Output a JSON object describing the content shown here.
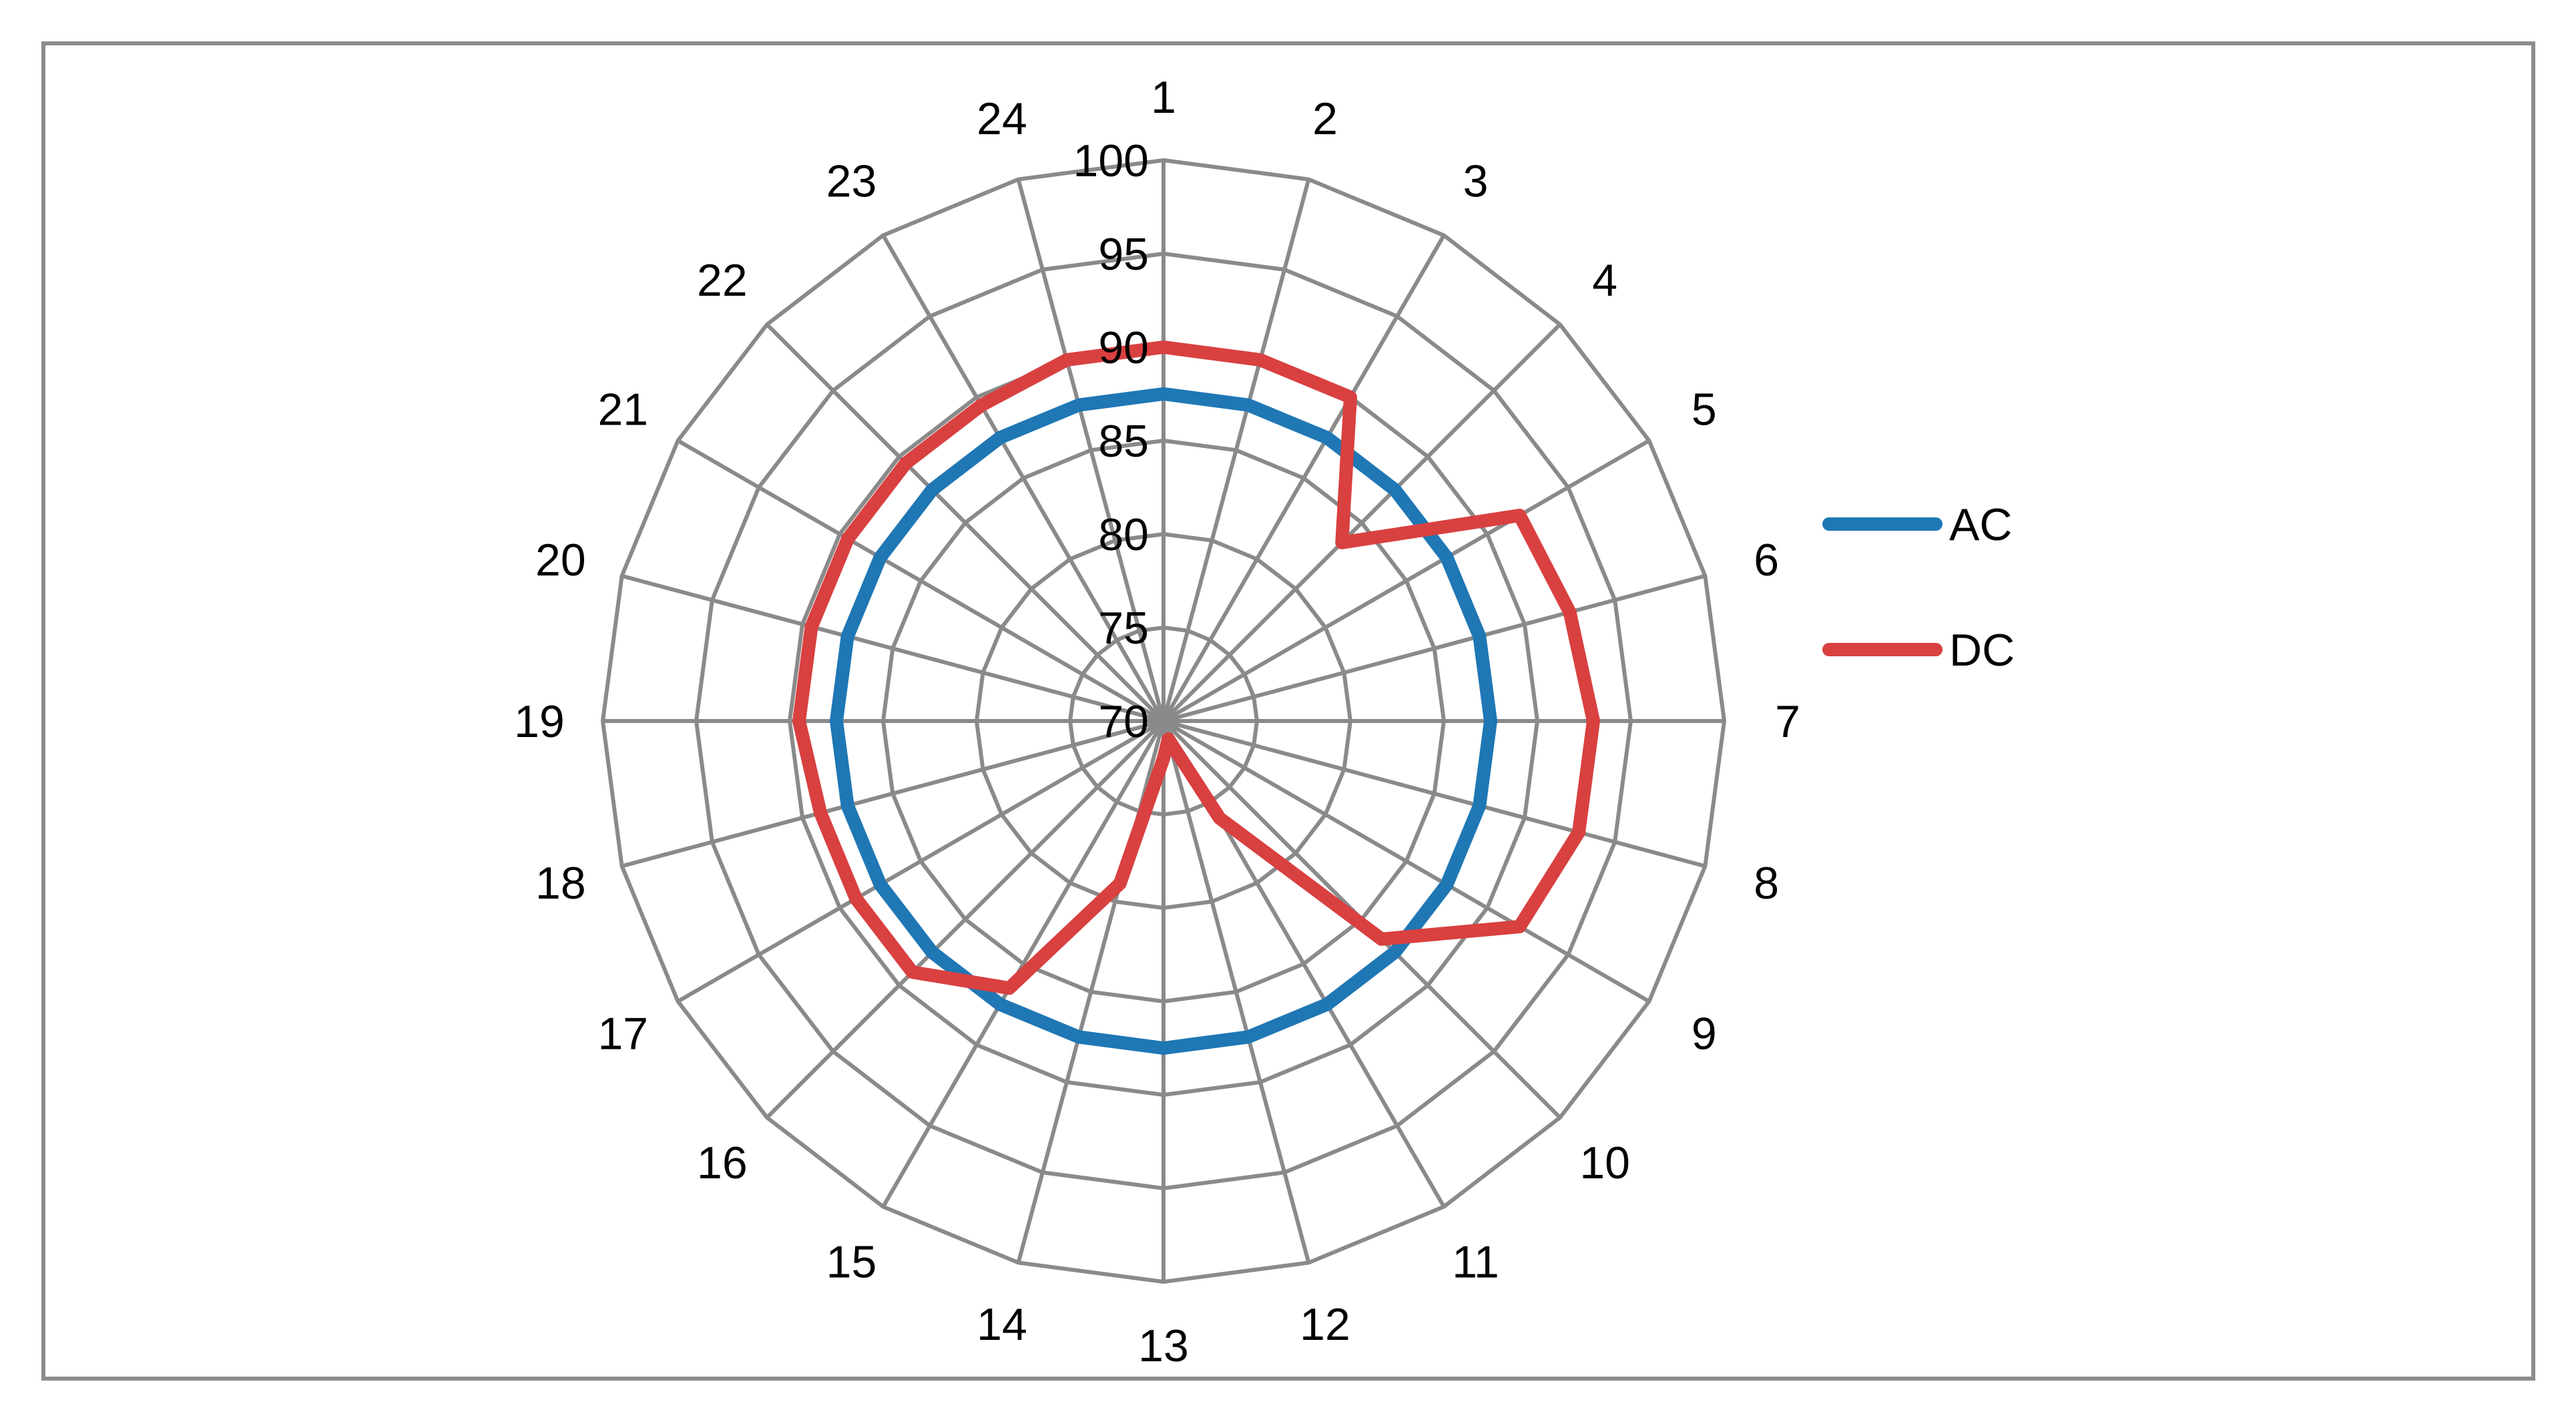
{
  "chart_data": {
    "type": "radar",
    "title": "",
    "categories": [
      "1",
      "2",
      "3",
      "4",
      "5",
      "6",
      "7",
      "8",
      "9",
      "10",
      "11",
      "12",
      "13",
      "14",
      "15",
      "16",
      "17",
      "18",
      "19",
      "20",
      "21",
      "22",
      "23",
      "24"
    ],
    "rlim": [
      70,
      100
    ],
    "ticks": [
      "70",
      "75",
      "80",
      "85",
      "90",
      "95",
      "100"
    ],
    "tick_values": [
      70,
      75,
      80,
      85,
      90,
      95,
      100
    ],
    "grid": true,
    "legend_position": "right",
    "series": [
      {
        "name": "AC",
        "color": "#1f77b4",
        "values": [
          87.5,
          87.5,
          87.5,
          87.5,
          87.5,
          87.5,
          87.5,
          87.5,
          87.5,
          87.5,
          87.5,
          87.5,
          87.5,
          87.5,
          87.5,
          87.5,
          87.5,
          87.5,
          87.5,
          87.5,
          87.5,
          87.5,
          87.5,
          87.5
        ]
      },
      {
        "name": "DC",
        "color": "#d94040",
        "values": [
          90,
          90,
          90,
          83.5,
          92,
          92.5,
          93,
          93,
          92,
          86.5,
          76,
          71,
          72,
          79,
          86.5,
          89,
          89,
          89,
          89.5,
          89.5,
          89.5,
          89.5,
          89.5,
          90
        ]
      }
    ]
  }
}
